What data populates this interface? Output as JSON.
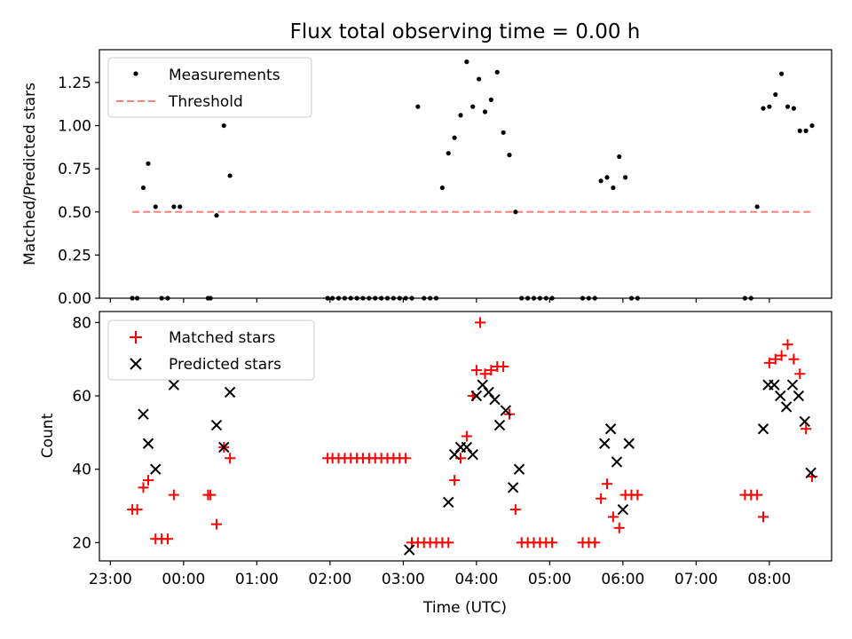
{
  "chart_data": {
    "title": "Flux total observing time = 0.00 h",
    "xlabel": "Time (UTC)",
    "x_unit": "UTC time of day; values after midnight written as 24:MM",
    "xlim": [
      "22:51",
      "32:51"
    ],
    "xticks": [
      {
        "t": "23:00",
        "label": "23:00"
      },
      {
        "t": "24:00",
        "label": "00:00"
      },
      {
        "t": "25:00",
        "label": "01:00"
      },
      {
        "t": "26:00",
        "label": "02:00"
      },
      {
        "t": "27:00",
        "label": "03:00"
      },
      {
        "t": "28:00",
        "label": "04:00"
      },
      {
        "t": "29:00",
        "label": "05:00"
      },
      {
        "t": "30:00",
        "label": "06:00"
      },
      {
        "t": "31:00",
        "label": "07:00"
      },
      {
        "t": "32:00",
        "label": "08:00"
      }
    ],
    "top": {
      "type": "scatter",
      "ylabel": "Matched/Predicted stars",
      "ylim": [
        0,
        1.44
      ],
      "yticks": [
        "0.00",
        "0.25",
        "0.50",
        "0.75",
        "1.00",
        "1.25"
      ],
      "legend_position": "top-left",
      "measurements": {
        "name": "Measurements",
        "color": "#000000",
        "t": [
          "23:18",
          "23:22",
          "23:27",
          "23:31",
          "23:37",
          "23:42",
          "23:47",
          "23:52",
          "23:57",
          "24:20",
          "24:22",
          "24:27",
          "24:33",
          "24:38",
          "25:58",
          "26:02",
          "26:07",
          "26:12",
          "26:17",
          "26:22",
          "26:27",
          "26:32",
          "26:37",
          "26:42",
          "26:47",
          "26:52",
          "26:57",
          "27:02",
          "27:07",
          "27:12",
          "27:17",
          "27:22",
          "27:27",
          "27:32",
          "27:37",
          "27:42",
          "27:47",
          "27:52",
          "27:57",
          "28:02",
          "28:07",
          "28:12",
          "28:17",
          "28:22",
          "28:27",
          "28:32",
          "28:37",
          "28:42",
          "28:47",
          "28:52",
          "28:57",
          "29:02",
          "29:27",
          "29:32",
          "29:37",
          "29:42",
          "29:47",
          "29:52",
          "29:57",
          "30:02",
          "30:07",
          "30:12",
          "31:40",
          "31:45",
          "31:50",
          "31:55",
          "32:00",
          "32:05",
          "32:10",
          "32:15",
          "32:20",
          "32:25",
          "32:30",
          "32:35"
        ],
        "y": [
          0,
          0,
          0.64,
          0.78,
          0.53,
          0,
          0,
          0.53,
          0.53,
          0,
          0,
          0.48,
          1.0,
          0.71,
          0,
          0,
          0,
          0,
          0,
          0,
          0,
          0,
          0,
          0,
          0,
          0,
          0,
          0,
          0,
          1.11,
          0,
          0,
          0,
          0.64,
          0.84,
          0.93,
          1.06,
          1.37,
          1.11,
          1.27,
          1.08,
          1.15,
          1.31,
          0.96,
          0.83,
          0.5,
          0,
          0,
          0,
          0,
          0,
          0,
          0,
          0,
          0,
          0.68,
          0.7,
          0.64,
          0.82,
          0.7,
          0,
          0,
          0,
          0,
          0.53,
          1.1,
          1.11,
          1.18,
          1.3,
          1.11,
          1.1,
          0.97,
          0.97,
          1.0
        ]
      },
      "threshold": {
        "name": "Threshold",
        "color": "#ff7f7f",
        "value": 0.5,
        "t_start": "23:18",
        "t_end": "32:35"
      }
    },
    "bottom": {
      "type": "scatter",
      "ylabel": "Count",
      "ylim": [
        15,
        83
      ],
      "yticks": [
        "20",
        "40",
        "60",
        "80"
      ],
      "legend_position": "top-left",
      "matched": {
        "name": "Matched stars",
        "color": "#ff0000",
        "points": [
          [
            "23:18",
            29
          ],
          [
            "23:22",
            29
          ],
          [
            "23:27",
            35
          ],
          [
            "23:31",
            37
          ],
          [
            "23:37",
            21
          ],
          [
            "23:42",
            21
          ],
          [
            "23:47",
            21
          ],
          [
            "23:52",
            33
          ],
          [
            "24:20",
            33
          ],
          [
            "24:22",
            33
          ],
          [
            "24:27",
            25
          ],
          [
            "24:33",
            46
          ],
          [
            "24:38",
            43
          ],
          [
            "25:58",
            43
          ],
          [
            "26:02",
            43
          ],
          [
            "26:07",
            43
          ],
          [
            "26:12",
            43
          ],
          [
            "26:17",
            43
          ],
          [
            "26:22",
            43
          ],
          [
            "26:27",
            43
          ],
          [
            "26:32",
            43
          ],
          [
            "26:37",
            43
          ],
          [
            "26:42",
            43
          ],
          [
            "26:47",
            43
          ],
          [
            "26:52",
            43
          ],
          [
            "26:57",
            43
          ],
          [
            "27:02",
            43
          ],
          [
            "27:07",
            20
          ],
          [
            "27:12",
            20
          ],
          [
            "27:17",
            20
          ],
          [
            "27:22",
            20
          ],
          [
            "27:27",
            20
          ],
          [
            "27:32",
            20
          ],
          [
            "27:37",
            20
          ],
          [
            "27:42",
            37
          ],
          [
            "27:47",
            43
          ],
          [
            "27:52",
            49
          ],
          [
            "27:57",
            60
          ],
          [
            "28:00",
            67
          ],
          [
            "28:03",
            80
          ],
          [
            "28:07",
            66
          ],
          [
            "28:12",
            67
          ],
          [
            "28:17",
            68
          ],
          [
            "28:22",
            68
          ],
          [
            "28:27",
            55
          ],
          [
            "28:32",
            29
          ],
          [
            "28:37",
            20
          ],
          [
            "28:42",
            20
          ],
          [
            "28:47",
            20
          ],
          [
            "28:52",
            20
          ],
          [
            "28:57",
            20
          ],
          [
            "29:02",
            20
          ],
          [
            "29:27",
            20
          ],
          [
            "29:32",
            20
          ],
          [
            "29:37",
            20
          ],
          [
            "29:42",
            32
          ],
          [
            "29:47",
            36
          ],
          [
            "29:52",
            27
          ],
          [
            "29:57",
            24
          ],
          [
            "30:02",
            33
          ],
          [
            "30:07",
            33
          ],
          [
            "30:12",
            33
          ],
          [
            "31:40",
            33
          ],
          [
            "31:45",
            33
          ],
          [
            "31:50",
            33
          ],
          [
            "31:55",
            27
          ],
          [
            "32:00",
            69
          ],
          [
            "32:05",
            70
          ],
          [
            "32:10",
            71
          ],
          [
            "32:15",
            74
          ],
          [
            "32:20",
            70
          ],
          [
            "32:25",
            66
          ],
          [
            "32:30",
            51
          ],
          [
            "32:35",
            38
          ]
        ]
      },
      "predicted": {
        "name": "Predicted stars",
        "color": "#000000",
        "points": [
          [
            "23:27",
            55
          ],
          [
            "23:31",
            47
          ],
          [
            "23:37",
            40
          ],
          [
            "23:52",
            63
          ],
          [
            "24:27",
            52
          ],
          [
            "24:33",
            46
          ],
          [
            "24:38",
            61
          ],
          [
            "27:05",
            18
          ],
          [
            "27:37",
            31
          ],
          [
            "27:42",
            44
          ],
          [
            "27:47",
            46
          ],
          [
            "27:52",
            46
          ],
          [
            "27:57",
            44
          ],
          [
            "28:00",
            60
          ],
          [
            "28:05",
            63
          ],
          [
            "28:10",
            61
          ],
          [
            "28:15",
            59
          ],
          [
            "28:19",
            52
          ],
          [
            "28:24",
            56
          ],
          [
            "28:30",
            35
          ],
          [
            "28:35",
            40
          ],
          [
            "29:45",
            47
          ],
          [
            "29:50",
            51
          ],
          [
            "29:55",
            42
          ],
          [
            "30:00",
            29
          ],
          [
            "30:05",
            47
          ],
          [
            "31:55",
            51
          ],
          [
            "31:59",
            63
          ],
          [
            "32:04",
            63
          ],
          [
            "32:09",
            60
          ],
          [
            "32:14",
            57
          ],
          [
            "32:19",
            63
          ],
          [
            "32:24",
            60
          ],
          [
            "32:29",
            53
          ],
          [
            "32:34",
            39
          ]
        ]
      }
    }
  }
}
